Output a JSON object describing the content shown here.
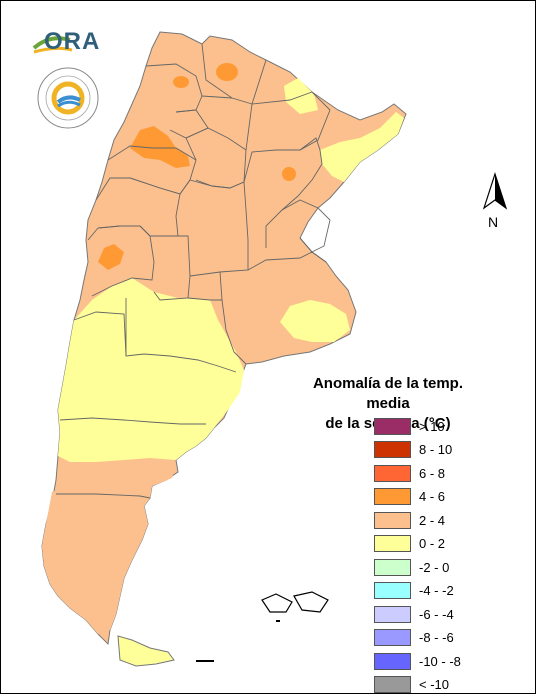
{
  "logos": {
    "ora_text": "ORA",
    "smn_ring_text": "SERVICIO METEOROLÓGICO NACIONAL",
    "smn_bottom_text": "ARGENTINA"
  },
  "north_arrow": {
    "label": "N"
  },
  "legend": {
    "title_line1": "Anomalía de la temp. media",
    "title_line2": "de la semana (°C)",
    "items": [
      {
        "label": "> 10",
        "color": "#9b2d66"
      },
      {
        "label": "8 - 10",
        "color": "#cc3300"
      },
      {
        "label": "6 - 8",
        "color": "#ff6633"
      },
      {
        "label": "4 - 6",
        "color": "#ff9933"
      },
      {
        "label": "2 - 4",
        "color": "#fbc08e"
      },
      {
        "label": "0 - 2",
        "color": "#ffff99"
      },
      {
        "label": "-2 - 0",
        "color": "#ccffcc"
      },
      {
        "label": "-4 - -2",
        "color": "#99ffff"
      },
      {
        "label": "-6 - -4",
        "color": "#ccccff"
      },
      {
        "label": "-8 - -6",
        "color": "#9999ff"
      },
      {
        "label": "-10 - -8",
        "color": "#6666ff"
      },
      {
        "label": "< -10",
        "color": "#999999"
      }
    ]
  },
  "map": {
    "country": "Argentina",
    "dominant_class": "2 - 4",
    "classes_present": [
      "4 - 6",
      "2 - 4",
      "0 - 2"
    ]
  }
}
